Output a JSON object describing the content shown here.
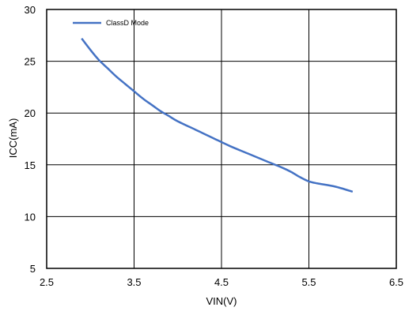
{
  "chart_data": {
    "type": "line",
    "title": "",
    "xlabel": "VIN(V)",
    "ylabel": "ICC(mA)",
    "xlim": [
      2.5,
      6.5
    ],
    "ylim": [
      5,
      30
    ],
    "x_ticks": [
      "2.5",
      "3.5",
      "4.5",
      "5.5",
      "6.5"
    ],
    "y_ticks": [
      "5",
      "10",
      "15",
      "20",
      "25",
      "30"
    ],
    "x_tick_values": [
      2.5,
      3.5,
      4.5,
      5.5,
      6.5
    ],
    "y_tick_values": [
      5,
      10,
      15,
      20,
      25,
      30
    ],
    "grid": true,
    "legend_position": "top-left",
    "series": [
      {
        "name": "ClassD Mode",
        "color": "#4472C4",
        "x": [
          2.9,
          3.0,
          3.1,
          3.2,
          3.3,
          3.4,
          3.5,
          3.6,
          3.7,
          3.8,
          3.9,
          4.0,
          4.2,
          4.4,
          4.6,
          4.8,
          5.0,
          5.2,
          5.3,
          5.4,
          5.5,
          5.6,
          5.8,
          6.0
        ],
        "values": [
          27.2,
          26.1,
          25.1,
          24.3,
          23.5,
          22.8,
          22.1,
          21.4,
          20.8,
          20.2,
          19.7,
          19.2,
          18.4,
          17.6,
          16.8,
          16.1,
          15.4,
          14.7,
          14.3,
          13.8,
          13.4,
          13.2,
          12.9,
          12.4
        ]
      }
    ]
  }
}
